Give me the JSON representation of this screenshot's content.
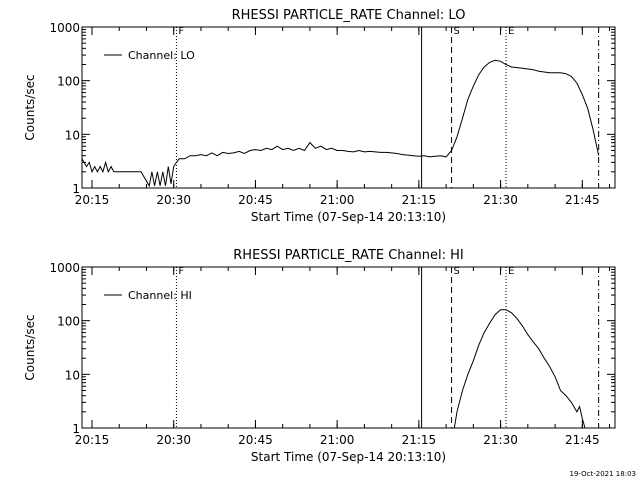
{
  "footer": {
    "timestamp": "19-Oct-2021 18:03"
  },
  "chart_data": [
    {
      "type": "line",
      "title": "RHESSI PARTICLE_RATE Channel: LO",
      "xlabel": "Start Time (07-Sep-14 20:13:10)",
      "ylabel": "Counts/sec",
      "y_scale": "log",
      "ylim": [
        1,
        1000
      ],
      "xlim": [
        "20:13:10",
        "21:51:00"
      ],
      "x_ticks": [
        "20:15",
        "20:30",
        "20:45",
        "21:00",
        "21:15",
        "21:30",
        "21:45"
      ],
      "y_ticks": [
        "1",
        "10",
        "100",
        "1000"
      ],
      "legend": {
        "position": "top-left",
        "label": "Channel: LO"
      },
      "markers": [
        {
          "label": "F",
          "time": "20:30:30",
          "style": "dotted"
        },
        {
          "label": "",
          "time": "21:15:30",
          "style": "solid"
        },
        {
          "label": "S",
          "time": "21:21:00",
          "style": "dashed"
        },
        {
          "label": "E",
          "time": "21:31:00",
          "style": "dotted"
        },
        {
          "label": "",
          "time": "21:48:00",
          "style": "dashdot"
        }
      ],
      "series": [
        {
          "name": "Channel: LO",
          "x": [
            "20:13:10",
            "20:14:00",
            "20:14:30",
            "20:15:00",
            "20:15:30",
            "20:16:00",
            "20:16:30",
            "20:17:00",
            "20:17:30",
            "20:18:00",
            "20:18:30",
            "20:19:00",
            "20:20:00",
            "20:22:00",
            "20:24:00",
            "20:25:30",
            "20:26:00",
            "20:26:30",
            "20:27:00",
            "20:27:30",
            "20:28:00",
            "20:28:30",
            "20:29:00",
            "20:29:30",
            "20:30:00",
            "20:30:30",
            "20:31:00",
            "20:31:30",
            "20:32:00",
            "20:33:00",
            "20:34:00",
            "20:35:00",
            "20:36:00",
            "20:37:00",
            "20:38:00",
            "20:39:00",
            "20:40:00",
            "20:41:00",
            "20:42:00",
            "20:43:00",
            "20:44:00",
            "20:45:00",
            "20:46:00",
            "20:47:00",
            "20:48:00",
            "20:49:00",
            "20:50:00",
            "20:51:00",
            "20:52:00",
            "20:53:00",
            "20:54:00",
            "20:55:00",
            "20:56:00",
            "20:57:00",
            "20:58:00",
            "20:59:00",
            "21:00:00",
            "21:01:00",
            "21:02:00",
            "21:03:00",
            "21:04:00",
            "21:05:00",
            "21:06:00",
            "21:07:00",
            "21:08:00",
            "21:09:00",
            "21:10:00",
            "21:11:00",
            "21:12:00",
            "21:13:00",
            "21:14:00",
            "21:15:00",
            "21:16:00",
            "21:17:00",
            "21:18:00",
            "21:19:00",
            "21:20:00",
            "21:21:00",
            "21:22:00",
            "21:23:00",
            "21:24:00",
            "21:25:00",
            "21:26:00",
            "21:27:00",
            "21:28:00",
            "21:29:00",
            "21:30:00",
            "21:31:00",
            "21:32:00",
            "21:33:00",
            "21:34:00",
            "21:35:00",
            "21:36:00",
            "21:37:00",
            "21:38:00",
            "21:39:00",
            "21:40:00",
            "21:41:00",
            "21:42:00",
            "21:43:00",
            "21:44:00",
            "21:45:00",
            "21:46:00",
            "21:47:00",
            "21:48:00"
          ],
          "values": [
            3.5,
            2.5,
            3,
            2,
            2.5,
            2,
            2.5,
            2,
            3,
            2,
            2.5,
            2,
            2,
            2,
            2,
            1.1,
            2,
            1.1,
            2,
            1.1,
            2,
            1.1,
            2.5,
            1.2,
            2.5,
            3,
            3.5,
            3.5,
            3.5,
            4,
            4,
            4.2,
            4,
            4.5,
            4,
            4.6,
            4.4,
            4.5,
            4.8,
            4.4,
            5,
            5.2,
            5,
            5.5,
            5.2,
            6,
            5.2,
            5.5,
            5,
            5.5,
            5,
            7,
            5.5,
            6,
            5.2,
            5.5,
            5,
            5,
            4.8,
            4.7,
            5,
            4.7,
            4.8,
            4.7,
            4.6,
            4.6,
            4.5,
            4.4,
            4.2,
            4.1,
            4,
            3.9,
            4,
            3.8,
            3.9,
            4,
            3.8,
            5,
            9,
            20,
            45,
            80,
            130,
            180,
            220,
            240,
            230,
            200,
            180,
            175,
            170,
            165,
            160,
            150,
            145,
            140,
            140,
            140,
            135,
            120,
            90,
            55,
            30,
            12,
            4
          ]
        }
      ]
    },
    {
      "type": "line",
      "title": "RHESSI PARTICLE_RATE Channel: HI",
      "xlabel": "Start Time (07-Sep-14 20:13:10)",
      "ylabel": "Counts/sec",
      "y_scale": "log",
      "ylim": [
        1,
        1000
      ],
      "xlim": [
        "20:13:10",
        "21:51:00"
      ],
      "x_ticks": [
        "20:15",
        "20:30",
        "20:45",
        "21:00",
        "21:15",
        "21:30",
        "21:45"
      ],
      "y_ticks": [
        "1",
        "10",
        "100",
        "1000"
      ],
      "legend": {
        "position": "top-left",
        "label": "Channel: HI"
      },
      "markers": [
        {
          "label": "F",
          "time": "20:30:30",
          "style": "dotted"
        },
        {
          "label": "",
          "time": "21:15:30",
          "style": "solid"
        },
        {
          "label": "S",
          "time": "21:21:00",
          "style": "dashed"
        },
        {
          "label": "E",
          "time": "21:31:00",
          "style": "dotted"
        },
        {
          "label": "",
          "time": "21:48:00",
          "style": "dashdot"
        }
      ],
      "series": [
        {
          "name": "Channel: HI",
          "x": [
            "21:21:30",
            "21:22:00",
            "21:23:00",
            "21:24:00",
            "21:25:00",
            "21:26:00",
            "21:27:00",
            "21:28:00",
            "21:29:00",
            "21:30:00",
            "21:31:00",
            "21:32:00",
            "21:33:00",
            "21:34:00",
            "21:35:00",
            "21:36:00",
            "21:37:00",
            "21:38:00",
            "21:39:00",
            "21:40:00",
            "21:41:00",
            "21:42:00",
            "21:43:00",
            "21:44:00",
            "21:44:30",
            "21:45:00",
            "21:45:30"
          ],
          "values": [
            1,
            2,
            5,
            10,
            18,
            35,
            60,
            90,
            130,
            160,
            160,
            140,
            110,
            80,
            55,
            40,
            30,
            20,
            14,
            9,
            5,
            4,
            3,
            2,
            2.5,
            1.5,
            1
          ]
        }
      ]
    }
  ]
}
